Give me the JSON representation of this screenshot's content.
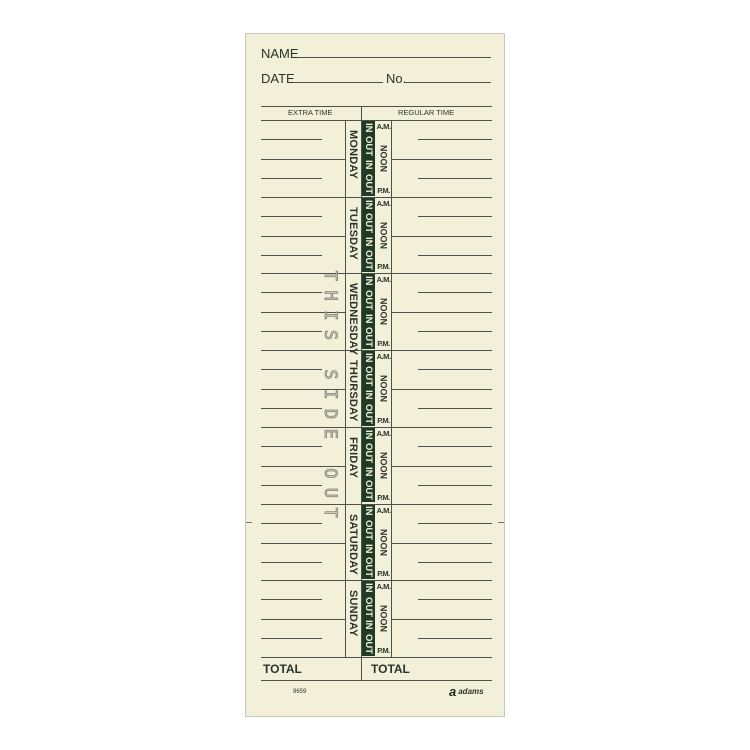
{
  "card": {
    "name_label": "NAME",
    "date_label": "DATE",
    "no_label": "No.",
    "extra_time_header": "EXTRA TIME",
    "regular_time_header": "REGULAR TIME",
    "watermark": "THIS SIDE OUT",
    "in_label": "IN",
    "out_label": "OUT",
    "am_label": "A.M.",
    "noon_label": "NOON",
    "pm_label": "P.M.",
    "days": [
      "MONDAY",
      "TUESDAY",
      "WEDNESDAY",
      "THURSDAY",
      "FRIDAY",
      "SATURDAY",
      "SUNDAY"
    ],
    "total_left": "TOTAL",
    "total_right": "TOTAL",
    "form_number": "9659",
    "brand": "adams",
    "colors": {
      "paper": "#f2f0d9",
      "ink": "#2b3429",
      "strip": "#1f3b25"
    }
  }
}
